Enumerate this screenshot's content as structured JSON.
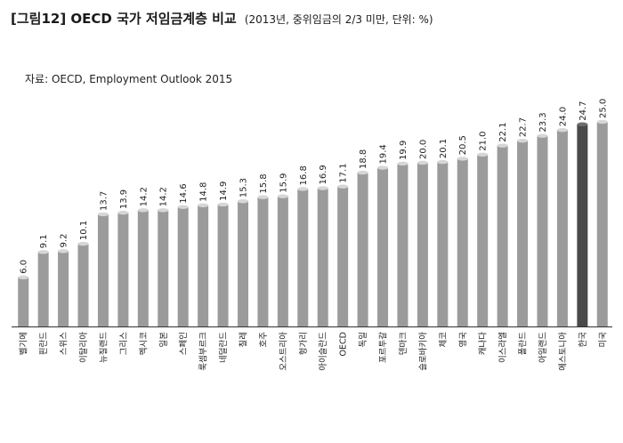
{
  "header": {
    "title": "[그림12] OECD 국가 저임금계층 비교",
    "subtitle": "(2013년, 중위임금의 2/3 미만, 단위: %)"
  },
  "source": "자료: OECD, Employment Outlook 2015",
  "colors": {
    "bar": "#9b9b9b",
    "highlight": "#4a4a4a",
    "cap": "#d6d6d6",
    "axis": "#333333"
  },
  "chart_data": {
    "type": "bar",
    "title": "[그림12] OECD 국가 저임금계층 비교",
    "categories": [
      "벨기에",
      "핀란드",
      "스위스",
      "이탈리아",
      "뉴질랜드",
      "그리스",
      "멕시코",
      "일본",
      "스페인",
      "룩셈부르크",
      "네덜란드",
      "칠레",
      "호주",
      "오스트리아",
      "헝가리",
      "아이슬란드",
      "OECD",
      "독일",
      "포르투갈",
      "덴마크",
      "슬로바키아",
      "체코",
      "영국",
      "캐나다",
      "이스라엘",
      "폴란드",
      "아일랜드",
      "에스토니아",
      "한국",
      "미국"
    ],
    "values": [
      6.0,
      9.1,
      9.2,
      10.1,
      13.7,
      13.9,
      14.2,
      14.2,
      14.6,
      14.8,
      14.9,
      15.3,
      15.8,
      15.9,
      16.8,
      16.9,
      17.1,
      18.8,
      19.4,
      19.9,
      20.0,
      20.1,
      20.5,
      21.0,
      22.1,
      22.7,
      23.3,
      24.0,
      24.7,
      25.0
    ],
    "value_labels": [
      "6.0",
      "9.1",
      "9.2",
      "10.1",
      "13.7",
      "13.9",
      "14.2",
      "14.2",
      "14.6",
      "14.8",
      "14.9",
      "15.3",
      "15.8",
      "15.9",
      "16.8",
      "16.9",
      "17.1",
      "18.8",
      "19.4",
      "19.9",
      "20.0",
      "20.1",
      "20.5",
      "21.0",
      "22.1",
      "22.7",
      "23.3",
      "24.0",
      "24.7",
      "25.0"
    ],
    "highlight": [
      "한국"
    ],
    "ylim": [
      0,
      25
    ],
    "xlabel": "",
    "ylabel": "",
    "grid": false,
    "legend": "none"
  }
}
